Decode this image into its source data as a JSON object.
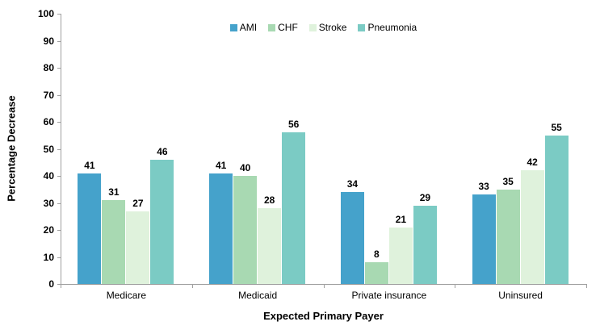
{
  "chart_data": {
    "type": "bar",
    "title": "",
    "categories": [
      "Medicare",
      "Medicaid",
      "Private insurance",
      "Uninsured"
    ],
    "series": [
      {
        "name": "AMI",
        "color": "#45A2CB",
        "values": [
          41,
          41,
          34,
          33
        ]
      },
      {
        "name": "CHF",
        "color": "#A8D9B2",
        "values": [
          31,
          40,
          8,
          35
        ]
      },
      {
        "name": "Stroke",
        "color": "#DFF2DC",
        "values": [
          27,
          28,
          21,
          42
        ]
      },
      {
        "name": "Pneumonia",
        "color": "#7BCBC4",
        "values": [
          46,
          56,
          29,
          55
        ]
      }
    ],
    "xlabel": "Expected Primary Payer",
    "ylabel": "Percentage Decrease",
    "ylim": [
      0,
      100
    ],
    "yticks": [
      0,
      10,
      20,
      30,
      40,
      50,
      60,
      70,
      80,
      90,
      100
    ],
    "grid": false,
    "data_labels": true,
    "legend_position": "top-center"
  },
  "colors": {
    "axis": "#a0a0a0",
    "text": "#000000",
    "background": "#ffffff"
  }
}
